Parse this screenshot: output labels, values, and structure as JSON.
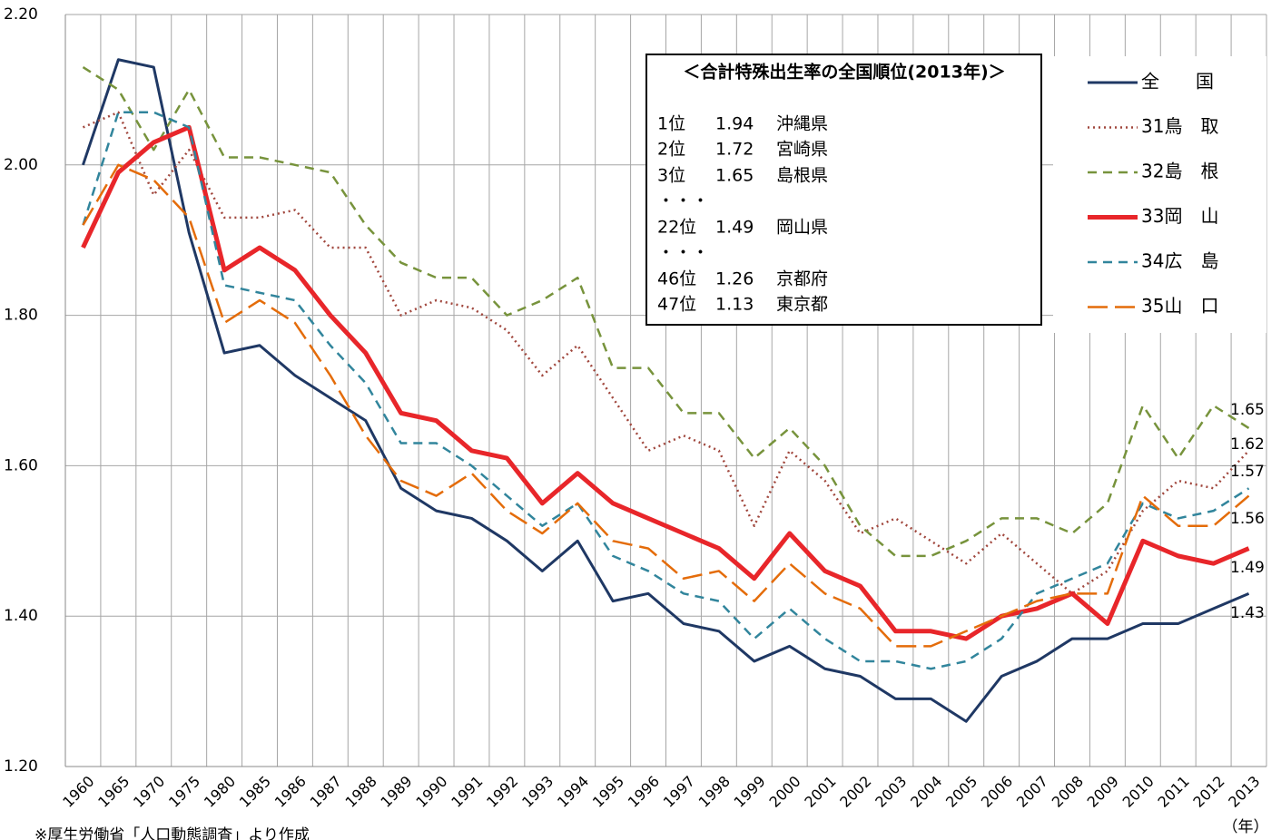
{
  "chart_data": {
    "type": "line",
    "categories": [
      "1960",
      "1965",
      "1970",
      "1975",
      "1980",
      "1985",
      "1986",
      "1987",
      "1988",
      "1989",
      "1990",
      "1991",
      "1992",
      "1993",
      "1994",
      "1995",
      "1996",
      "1997",
      "1998",
      "1999",
      "2000",
      "2001",
      "2002",
      "2003",
      "2004",
      "2005",
      "2006",
      "2007",
      "2008",
      "2009",
      "2010",
      "2011",
      "2012",
      "2013"
    ],
    "x_unit": "（年）",
    "ylim": [
      1.2,
      2.2
    ],
    "yticks": [
      {
        "value": 1.2,
        "label": "1.20"
      },
      {
        "value": 1.4,
        "label": "1.40"
      },
      {
        "value": 1.6,
        "label": "1.60"
      },
      {
        "value": 1.8,
        "label": "1.80"
      },
      {
        "value": 2.0,
        "label": "2.00"
      },
      {
        "value": 2.2,
        "label": "2.20"
      }
    ],
    "grid": true,
    "legend": "upper right",
    "series": [
      {
        "name": "全　　国",
        "color": "#1f3864",
        "style": "solid",
        "values": [
          2.0,
          2.14,
          2.13,
          1.91,
          1.75,
          1.76,
          1.72,
          1.69,
          1.66,
          1.57,
          1.54,
          1.53,
          1.5,
          1.46,
          1.5,
          1.42,
          1.43,
          1.39,
          1.38,
          1.34,
          1.36,
          1.33,
          1.32,
          1.29,
          1.29,
          1.26,
          1.32,
          1.34,
          1.37,
          1.37,
          1.39,
          1.39,
          1.41,
          1.43
        ]
      },
      {
        "name": "31鳥　取",
        "color": "#a0463c",
        "style": "dotted",
        "values": [
          2.05,
          2.07,
          1.96,
          2.02,
          1.93,
          1.93,
          1.94,
          1.89,
          1.89,
          1.8,
          1.82,
          1.81,
          1.78,
          1.72,
          1.76,
          1.69,
          1.62,
          1.64,
          1.62,
          1.52,
          1.62,
          1.58,
          1.51,
          1.53,
          1.5,
          1.47,
          1.51,
          1.47,
          1.43,
          1.46,
          1.54,
          1.58,
          1.57,
          1.62
        ]
      },
      {
        "name": "32島　根",
        "color": "#77933c",
        "style": "dashed",
        "values": [
          2.13,
          2.1,
          2.02,
          2.1,
          2.01,
          2.01,
          2.0,
          1.99,
          1.92,
          1.87,
          1.85,
          1.85,
          1.8,
          1.82,
          1.85,
          1.73,
          1.73,
          1.67,
          1.67,
          1.61,
          1.65,
          1.6,
          1.52,
          1.48,
          1.48,
          1.5,
          1.53,
          1.53,
          1.51,
          1.55,
          1.68,
          1.61,
          1.68,
          1.65
        ]
      },
      {
        "name": "33岡　山",
        "color": "#e8262a",
        "style": "thick",
        "values": [
          1.89,
          1.99,
          2.03,
          2.05,
          1.86,
          1.89,
          1.86,
          1.8,
          1.75,
          1.67,
          1.66,
          1.62,
          1.61,
          1.55,
          1.59,
          1.55,
          1.53,
          1.51,
          1.49,
          1.45,
          1.51,
          1.46,
          1.44,
          1.38,
          1.38,
          1.37,
          1.4,
          1.41,
          1.43,
          1.39,
          1.5,
          1.48,
          1.47,
          1.49
        ]
      },
      {
        "name": "34広　島",
        "color": "#31859c",
        "style": "dashed",
        "values": [
          1.92,
          2.07,
          2.07,
          2.05,
          1.84,
          1.83,
          1.82,
          1.76,
          1.71,
          1.63,
          1.63,
          1.6,
          1.56,
          1.52,
          1.55,
          1.48,
          1.46,
          1.43,
          1.42,
          1.37,
          1.41,
          1.37,
          1.34,
          1.34,
          1.33,
          1.34,
          1.37,
          1.43,
          1.45,
          1.47,
          1.55,
          1.53,
          1.54,
          1.57
        ]
      },
      {
        "name": "35山　口",
        "color": "#e46c0a",
        "style": "longdash",
        "values": [
          1.92,
          2.0,
          1.98,
          1.93,
          1.79,
          1.82,
          1.79,
          1.72,
          1.64,
          1.58,
          1.56,
          1.59,
          1.54,
          1.51,
          1.55,
          1.5,
          1.49,
          1.45,
          1.46,
          1.42,
          1.47,
          1.43,
          1.41,
          1.36,
          1.36,
          1.38,
          1.4,
          1.42,
          1.43,
          1.43,
          1.56,
          1.52,
          1.52,
          1.56
        ]
      }
    ],
    "info_box": {
      "title": "＜合計特殊出生率の全国順位(2013年)＞",
      "lines": [
        [
          "1位",
          "1.94",
          "沖縄県"
        ],
        [
          "2位",
          "1.72",
          "宮崎県"
        ],
        [
          "3位",
          "1.65",
          "島根県"
        ],
        [
          "・・・"
        ],
        [
          "22位",
          "1.49",
          "岡山県"
        ],
        [
          "・・・"
        ],
        [
          "46位",
          "1.26",
          "京都府"
        ],
        [
          "47位",
          "1.13",
          "東京都"
        ]
      ]
    },
    "source": "※厚生労働省「人口動態調査」より作成"
  }
}
